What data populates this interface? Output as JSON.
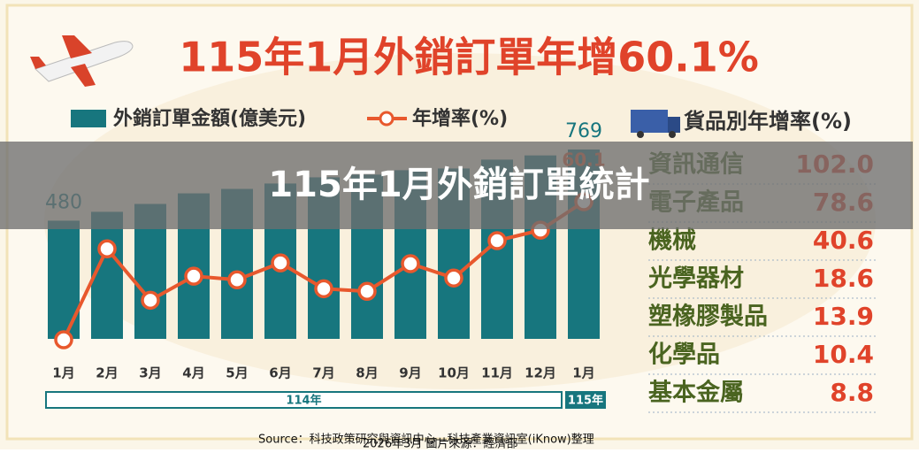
{
  "chart_data": {
    "type": "bar-line",
    "title": "115年1月外銷訂單年增60.1%",
    "categories": [
      "1月",
      "2月",
      "3月",
      "4月",
      "5月",
      "6月",
      "7月",
      "8月",
      "9月",
      "10月",
      "11月",
      "12月",
      "1月"
    ],
    "year_groups": [
      {
        "label": "114年",
        "count": 12
      },
      {
        "label": "115年",
        "count": 1
      }
    ],
    "series": [
      {
        "name": "外銷訂單金額(億美元)",
        "color": "#17767e",
        "values": [
          480,
          516,
          548,
          591,
          609,
          631,
          656,
          667,
          685,
          692,
          728,
          745,
          769
        ]
      },
      {
        "name": "年增率(%)",
        "color": "#e8582d",
        "values": [
          -9.4,
          36.4,
          10.5,
          22.6,
          20.8,
          29.3,
          16.3,
          15.0,
          28.9,
          21.7,
          40.5,
          45.8,
          60.1
        ]
      }
    ]
  },
  "product_growth": {
    "title": "貨品別年增率(%)",
    "categories": [
      "資訊通信",
      "電子產品",
      "機械",
      "光學器材",
      "塑橡膠製品",
      "化學品",
      "基本金屬"
    ],
    "values": [
      102.0,
      78.6,
      40.6,
      18.6,
      13.9,
      10.4,
      8.8
    ],
    "value_labels": [
      "102.0",
      "78.6",
      "40.6",
      "18.6",
      "13.9",
      "10.4",
      "8.8"
    ]
  },
  "banner": "115年1月外銷訂單統計",
  "source": [
    "Source：科技政策研究與資訊中心—科技產業資訊室(iKnow)整理",
    "2026年3月  圖片來源：經濟部"
  ]
}
